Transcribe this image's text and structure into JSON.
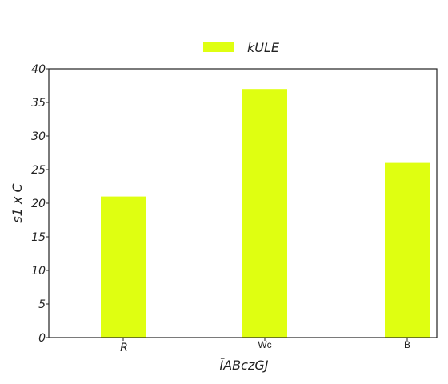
{
  "chart_data": {
    "type": "bar",
    "categories": [
      "R",
      "Wc",
      "B"
    ],
    "category_label_style": [
      "italic",
      "plain",
      "plain"
    ],
    "series": [
      {
        "name": "kULE",
        "values": [
          21,
          37,
          26
        ],
        "color": "#dfff11"
      }
    ],
    "xlabel": "ĪABczGJ",
    "ylabel": "s1 x C",
    "ylim": [
      0,
      40
    ],
    "yticks": [
      0,
      5,
      10,
      15,
      20,
      25,
      30,
      35,
      40
    ],
    "grid": false,
    "legend_position": "top-center",
    "colors": {
      "axis": "#222222",
      "background": "#ffffff"
    }
  }
}
